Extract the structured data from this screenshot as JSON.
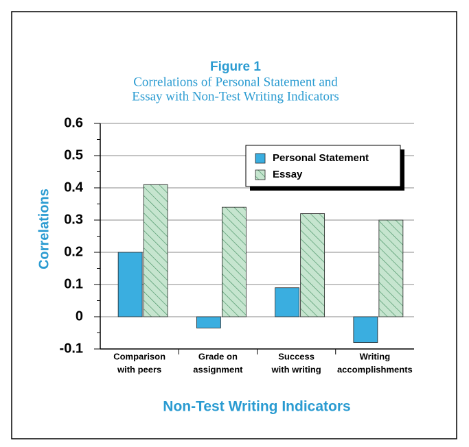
{
  "chart_data": {
    "type": "bar",
    "title": "Figure 1",
    "subtitle": [
      "Correlations of Personal Statement and",
      "Essay with Non-Test Writing Indicators"
    ],
    "x_label": "Non-Test Writing Indicators",
    "y_label": "Correlations",
    "categories": [
      [
        "Comparison",
        "with peers"
      ],
      [
        "Grade on",
        "assignment"
      ],
      [
        "Success",
        "with writing"
      ],
      [
        "Writing",
        "accomplishments"
      ]
    ],
    "series": [
      {
        "name": "Personal Statement",
        "color": "#3aaee0",
        "values": [
          0.2,
          -0.035,
          0.09,
          -0.08
        ]
      },
      {
        "name": "Essay",
        "color": "#c6e5cf",
        "hatch": "#3a8a5a",
        "values": [
          0.41,
          0.34,
          0.32,
          0.3
        ]
      }
    ],
    "ylim": [
      -0.1,
      0.6
    ],
    "yticks": [
      -0.1,
      0,
      0.1,
      0.2,
      0.3,
      0.4,
      0.5,
      0.6
    ],
    "grid": true,
    "legend": "upper right"
  }
}
